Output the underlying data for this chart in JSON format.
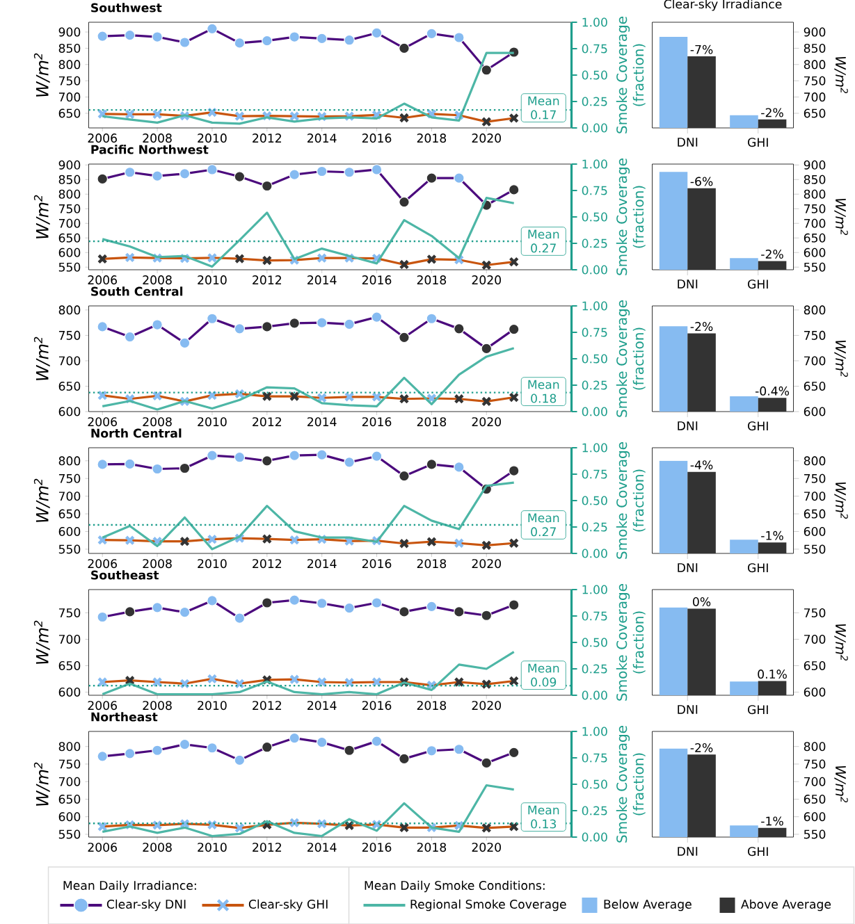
{
  "chart_data": [
    {
      "type": "line",
      "title": "Southwest",
      "ylabel": "W/m$^{2}$",
      "y2label": "Smoke Coverage (fraction)",
      "x": [
        2006,
        2007,
        2008,
        2009,
        2010,
        2011,
        2012,
        2013,
        2014,
        2015,
        2016,
        2017,
        2018,
        2019,
        2020,
        2021
      ],
      "xlim": [
        2005.5,
        2023.1
      ],
      "xticks": [
        2006,
        2008,
        2010,
        2012,
        2014,
        2016,
        2018,
        2020
      ],
      "ylim": [
        605,
        930
      ],
      "yticks": [
        650,
        700,
        750,
        800,
        850,
        900
      ],
      "y2lim": [
        0,
        1
      ],
      "y2ticks": [
        {
          "value": 0,
          "label": "0.00"
        },
        {
          "value": 0.25,
          "label": "0.25"
        },
        {
          "value": 0.5,
          "label": "0.50"
        },
        {
          "value": 0.75,
          "label": "0.75"
        },
        {
          "value": 1,
          "label": "1.00"
        }
      ],
      "series": [
        {
          "color": "#4b0a7d",
          "marker": "circle",
          "colors": [
            "#86bbf1",
            "#86bbf1",
            "#86bbf1",
            "#86bbf1",
            "#86bbf1",
            "#86bbf1",
            "#86bbf1",
            "#86bbf1",
            "#86bbf1",
            "#86bbf1",
            "#86bbf1",
            "#333333",
            "#86bbf1",
            "#86bbf1",
            "#333333",
            "#333333"
          ],
          "values": [
            887,
            890,
            885,
            868,
            910,
            866,
            873,
            885,
            880,
            875,
            897,
            850,
            895,
            883,
            783,
            838
          ]
        },
        {
          "color": "#c8550f",
          "marker": "cross",
          "colors": [
            "#86bbf1",
            "#86bbf1",
            "#86bbf1",
            "#86bbf1",
            "#86bbf1",
            "#86bbf1",
            "#86bbf1",
            "#86bbf1",
            "#86bbf1",
            "#86bbf1",
            "#86bbf1",
            "#333333",
            "#86bbf1",
            "#86bbf1",
            "#333333",
            "#333333"
          ],
          "values": [
            648,
            647,
            647,
            642,
            653,
            641,
            642,
            641,
            640,
            641,
            645,
            636,
            648,
            644,
            624,
            635
          ]
        },
        {
          "color": "#4db6a6",
          "axis": "y2",
          "values": [
            0.11,
            0.08,
            0.05,
            0.12,
            0.05,
            0.04,
            0.1,
            0.06,
            0.09,
            0.1,
            0.09,
            0.23,
            0.1,
            0.07,
            0.71,
            0.71
          ]
        }
      ],
      "ref_lines": [
        {
          "axis": "y2",
          "value": 0.17,
          "label": "Mean 0.17",
          "color": "#1e9e8c",
          "line_style": "dotted"
        }
      ]
    },
    {
      "type": "bar",
      "title": "Clear-sky Irradiance",
      "ylabel": "W/m$^{2}$",
      "categories": [
        "DNI",
        "GHI"
      ],
      "ylim": [
        605,
        930
      ],
      "yticks": [
        650,
        700,
        750,
        800,
        850,
        900
      ],
      "series": [
        {
          "color": "#86bbf1",
          "values": [
            885,
            644
          ]
        },
        {
          "color": "#333333",
          "values": [
            825,
            631
          ]
        }
      ],
      "annotations": [
        {
          "text": "-7%",
          "x": "DNI",
          "y": 825
        },
        {
          "text": "-2%",
          "x": "GHI",
          "y": 631
        }
      ]
    },
    {
      "type": "line",
      "title": "Pacific Northwest",
      "ylabel": "W/m$^{2}$",
      "y2label": "Smoke Coverage (fraction)",
      "x": [
        2006,
        2007,
        2008,
        2009,
        2010,
        2011,
        2012,
        2013,
        2014,
        2015,
        2016,
        2017,
        2018,
        2019,
        2020,
        2021
      ],
      "xlim": [
        2005.5,
        2023.1
      ],
      "xticks": [
        2006,
        2008,
        2010,
        2012,
        2014,
        2016,
        2018,
        2020
      ],
      "ylim": [
        541,
        903
      ],
      "yticks": [
        550,
        600,
        650,
        700,
        750,
        800,
        850,
        900
      ],
      "y2lim": [
        0,
        1
      ],
      "y2ticks": [
        {
          "value": 0,
          "label": "0.00"
        },
        {
          "value": 0.25,
          "label": "0.25"
        },
        {
          "value": 0.5,
          "label": "0.50"
        },
        {
          "value": 0.75,
          "label": "0.75"
        },
        {
          "value": 1,
          "label": "1.00"
        }
      ],
      "series": [
        {
          "color": "#4b0a7d",
          "marker": "circle",
          "colors": [
            "#333333",
            "#86bbf1",
            "#86bbf1",
            "#86bbf1",
            "#86bbf1",
            "#333333",
            "#333333",
            "#86bbf1",
            "#86bbf1",
            "#86bbf1",
            "#86bbf1",
            "#333333",
            "#333333",
            "#86bbf1",
            "#333333",
            "#333333"
          ],
          "values": [
            852,
            875,
            862,
            870,
            884,
            860,
            828,
            867,
            878,
            875,
            884,
            773,
            855,
            855,
            762,
            815
          ]
        },
        {
          "color": "#c8550f",
          "marker": "cross",
          "colors": [
            "#333333",
            "#86bbf1",
            "#86bbf1",
            "#86bbf1",
            "#86bbf1",
            "#333333",
            "#333333",
            "#86bbf1",
            "#86bbf1",
            "#86bbf1",
            "#86bbf1",
            "#333333",
            "#333333",
            "#86bbf1",
            "#333333",
            "#333333"
          ],
          "values": [
            578,
            583,
            581,
            580,
            582,
            579,
            573,
            574,
            581,
            581,
            580,
            559,
            577,
            575,
            557,
            568
          ]
        },
        {
          "color": "#4db6a6",
          "axis": "y2",
          "values": [
            0.29,
            0.22,
            0.12,
            0.13,
            0.03,
            0.28,
            0.54,
            0.1,
            0.2,
            0.13,
            0.06,
            0.47,
            0.32,
            0.11,
            0.68,
            0.63
          ]
        }
      ],
      "ref_lines": [
        {
          "axis": "y2",
          "value": 0.27,
          "label": "Mean 0.27",
          "color": "#1e9e8c",
          "line_style": "dotted"
        }
      ]
    },
    {
      "type": "bar",
      "ylabel": "W/m$^{2}$",
      "categories": [
        "DNI",
        "GHI"
      ],
      "ylim": [
        541,
        903
      ],
      "yticks": [
        550,
        600,
        650,
        700,
        750,
        800,
        850,
        900
      ],
      "series": [
        {
          "color": "#86bbf1",
          "values": [
            876,
            581
          ]
        },
        {
          "color": "#333333",
          "values": [
            820,
            571
          ]
        }
      ],
      "annotations": [
        {
          "text": "-6%",
          "x": "DNI",
          "y": 820
        },
        {
          "text": "-2%",
          "x": "GHI",
          "y": 571
        }
      ]
    },
    {
      "type": "line",
      "title": "South Central",
      "ylabel": "W/m$^{2}$",
      "y2label": "Smoke Coverage (fraction)",
      "x": [
        2006,
        2007,
        2008,
        2009,
        2010,
        2011,
        2012,
        2013,
        2014,
        2015,
        2016,
        2017,
        2018,
        2019,
        2020,
        2021
      ],
      "xlim": [
        2005.5,
        2023.1
      ],
      "xticks": [
        2006,
        2008,
        2010,
        2012,
        2014,
        2016,
        2018,
        2020
      ],
      "ylim": [
        600,
        808
      ],
      "yticks": [
        600,
        650,
        700,
        750,
        800
      ],
      "y2lim": [
        0,
        1
      ],
      "y2ticks": [
        {
          "value": 0,
          "label": "0.00"
        },
        {
          "value": 0.25,
          "label": "0.25"
        },
        {
          "value": 0.5,
          "label": "0.50"
        },
        {
          "value": 0.75,
          "label": "0.75"
        },
        {
          "value": 1,
          "label": "1.00"
        }
      ],
      "series": [
        {
          "color": "#4b0a7d",
          "marker": "circle",
          "colors": [
            "#86bbf1",
            "#86bbf1",
            "#86bbf1",
            "#86bbf1",
            "#86bbf1",
            "#86bbf1",
            "#333333",
            "#333333",
            "#86bbf1",
            "#86bbf1",
            "#86bbf1",
            "#333333",
            "#86bbf1",
            "#333333",
            "#333333",
            "#333333"
          ],
          "values": [
            767,
            747,
            771,
            735,
            783,
            763,
            767,
            774,
            775,
            772,
            786,
            746,
            783,
            763,
            724,
            762
          ]
        },
        {
          "color": "#c8550f",
          "marker": "cross",
          "colors": [
            "#86bbf1",
            "#86bbf1",
            "#86bbf1",
            "#86bbf1",
            "#86bbf1",
            "#86bbf1",
            "#333333",
            "#333333",
            "#86bbf1",
            "#86bbf1",
            "#86bbf1",
            "#333333",
            "#86bbf1",
            "#333333",
            "#333333",
            "#333333"
          ],
          "values": [
            632,
            625,
            631,
            620,
            632,
            635,
            630,
            630,
            627,
            629,
            629,
            625,
            626,
            625,
            620,
            628
          ]
        },
        {
          "color": "#4db6a6",
          "axis": "y2",
          "values": [
            0.05,
            0.1,
            0.02,
            0.1,
            0.03,
            0.11,
            0.23,
            0.22,
            0.08,
            0.06,
            0.05,
            0.32,
            0.07,
            0.35,
            0.52,
            0.6
          ]
        }
      ],
      "ref_lines": [
        {
          "axis": "y2",
          "value": 0.18,
          "label": "Mean 0.18",
          "color": "#1e9e8c",
          "line_style": "dotted"
        }
      ]
    },
    {
      "type": "bar",
      "ylabel": "W/m$^{2}$",
      "categories": [
        "DNI",
        "GHI"
      ],
      "ylim": [
        600,
        808
      ],
      "yticks": [
        600,
        650,
        700,
        750,
        800
      ],
      "series": [
        {
          "color": "#86bbf1",
          "values": [
            768,
            630
          ]
        },
        {
          "color": "#333333",
          "values": [
            754,
            627
          ]
        }
      ],
      "annotations": [
        {
          "text": "-2%",
          "x": "DNI",
          "y": 754
        },
        {
          "text": "-0.4%",
          "x": "GHI",
          "y": 627
        }
      ]
    },
    {
      "type": "line",
      "title": "North Central",
      "ylabel": "W/m$^{2}$",
      "y2label": "Smoke Coverage (fraction)",
      "x": [
        2006,
        2007,
        2008,
        2009,
        2010,
        2011,
        2012,
        2013,
        2014,
        2015,
        2016,
        2017,
        2018,
        2019,
        2020,
        2021
      ],
      "xlim": [
        2005.5,
        2023.1
      ],
      "xticks": [
        2006,
        2008,
        2010,
        2012,
        2014,
        2016,
        2018,
        2020
      ],
      "ylim": [
        538,
        837
      ],
      "yticks": [
        550,
        600,
        650,
        700,
        750,
        800
      ],
      "y2lim": [
        0,
        1
      ],
      "y2ticks": [
        {
          "value": 0,
          "label": "0.00"
        },
        {
          "value": 0.25,
          "label": "0.25"
        },
        {
          "value": 0.5,
          "label": "0.50"
        },
        {
          "value": 0.75,
          "label": "0.75"
        },
        {
          "value": 1,
          "label": "1.00"
        }
      ],
      "series": [
        {
          "color": "#4b0a7d",
          "marker": "circle",
          "colors": [
            "#86bbf1",
            "#86bbf1",
            "#86bbf1",
            "#333333",
            "#86bbf1",
            "#86bbf1",
            "#333333",
            "#86bbf1",
            "#86bbf1",
            "#86bbf1",
            "#86bbf1",
            "#333333",
            "#333333",
            "#86bbf1",
            "#333333",
            "#333333"
          ],
          "values": [
            790,
            791,
            777,
            779,
            815,
            810,
            800,
            815,
            817,
            796,
            813,
            757,
            790,
            782,
            720,
            772
          ]
        },
        {
          "color": "#c8550f",
          "marker": "cross",
          "colors": [
            "#86bbf1",
            "#86bbf1",
            "#86bbf1",
            "#333333",
            "#86bbf1",
            "#86bbf1",
            "#333333",
            "#86bbf1",
            "#86bbf1",
            "#86bbf1",
            "#86bbf1",
            "#333333",
            "#333333",
            "#86bbf1",
            "#333333",
            "#333333"
          ],
          "values": [
            576,
            575,
            572,
            572,
            578,
            581,
            579,
            576,
            578,
            573,
            574,
            566,
            571,
            567,
            561,
            567
          ]
        },
        {
          "color": "#4db6a6",
          "axis": "y2",
          "values": [
            0.15,
            0.26,
            0.07,
            0.34,
            0.04,
            0.16,
            0.45,
            0.21,
            0.15,
            0.15,
            0.11,
            0.45,
            0.31,
            0.23,
            0.64,
            0.67
          ]
        }
      ],
      "ref_lines": [
        {
          "axis": "y2",
          "value": 0.27,
          "label": "Mean 0.27",
          "color": "#1e9e8c",
          "line_style": "dotted"
        }
      ]
    },
    {
      "type": "bar",
      "ylabel": "W/m$^{2}$",
      "categories": [
        "DNI",
        "GHI"
      ],
      "ylim": [
        538,
        837
      ],
      "yticks": [
        550,
        600,
        650,
        700,
        750,
        800
      ],
      "series": [
        {
          "color": "#86bbf1",
          "values": [
            800,
            577
          ]
        },
        {
          "color": "#333333",
          "values": [
            769,
            569
          ]
        }
      ],
      "annotations": [
        {
          "text": "-4%",
          "x": "DNI",
          "y": 769
        },
        {
          "text": "-1%",
          "x": "GHI",
          "y": 569
        }
      ]
    },
    {
      "type": "line",
      "title": "Southeast",
      "ylabel": "W/m$^{2}$",
      "y2label": "Smoke Coverage (fraction)",
      "x": [
        2006,
        2007,
        2008,
        2009,
        2010,
        2011,
        2012,
        2013,
        2014,
        2015,
        2016,
        2017,
        2018,
        2019,
        2020,
        2021
      ],
      "xlim": [
        2005.5,
        2023.1
      ],
      "xticks": [
        2006,
        2008,
        2010,
        2012,
        2014,
        2016,
        2018,
        2020
      ],
      "ylim": [
        594,
        794
      ],
      "yticks": [
        600,
        650,
        700,
        750
      ],
      "y2lim": [
        0,
        1
      ],
      "y2ticks": [
        {
          "value": 0,
          "label": "0.00"
        },
        {
          "value": 0.25,
          "label": "0.25"
        },
        {
          "value": 0.5,
          "label": "0.50"
        },
        {
          "value": 0.75,
          "label": "0.75"
        },
        {
          "value": 1,
          "label": "1.00"
        }
      ],
      "series": [
        {
          "color": "#4b0a7d",
          "marker": "circle",
          "colors": [
            "#86bbf1",
            "#333333",
            "#86bbf1",
            "#86bbf1",
            "#86bbf1",
            "#86bbf1",
            "#333333",
            "#86bbf1",
            "#86bbf1",
            "#86bbf1",
            "#86bbf1",
            "#333333",
            "#86bbf1",
            "#333333",
            "#333333",
            "#333333"
          ],
          "values": [
            742,
            752,
            760,
            751,
            773,
            740,
            769,
            774,
            768,
            759,
            769,
            752,
            762,
            752,
            745,
            765
          ]
        },
        {
          "color": "#c8550f",
          "marker": "cross",
          "colors": [
            "#86bbf1",
            "#333333",
            "#86bbf1",
            "#86bbf1",
            "#86bbf1",
            "#86bbf1",
            "#333333",
            "#86bbf1",
            "#86bbf1",
            "#86bbf1",
            "#86bbf1",
            "#333333",
            "#86bbf1",
            "#333333",
            "#333333",
            "#333333"
          ],
          "values": [
            619,
            622,
            619,
            616,
            625,
            616,
            623,
            624,
            619,
            618,
            619,
            619,
            613,
            619,
            615,
            621
          ]
        },
        {
          "color": "#4db6a6",
          "axis": "y2",
          "values": [
            0.01,
            0.11,
            0.01,
            0.01,
            0.01,
            0.03,
            0.13,
            0.03,
            0.01,
            0.03,
            0.01,
            0.12,
            0.05,
            0.29,
            0.25,
            0.41
          ]
        }
      ],
      "ref_lines": [
        {
          "axis": "y2",
          "value": 0.09,
          "label": "Mean 0.09",
          "color": "#1e9e8c",
          "line_style": "dotted"
        }
      ]
    },
    {
      "type": "bar",
      "ylabel": "W/m$^{2}$",
      "categories": [
        "DNI",
        "GHI"
      ],
      "ylim": [
        594,
        794
      ],
      "yticks": [
        600,
        650,
        700,
        750
      ],
      "series": [
        {
          "color": "#86bbf1",
          "values": [
            760,
            620
          ]
        },
        {
          "color": "#333333",
          "values": [
            758,
            621
          ]
        }
      ],
      "annotations": [
        {
          "text": "0%",
          "x": "DNI",
          "y": 758
        },
        {
          "text": "0.1%",
          "x": "GHI",
          "y": 621
        }
      ]
    },
    {
      "type": "line",
      "title": "Northeast",
      "ylabel": "W/m$^{2}$",
      "y2label": "Smoke Coverage (fraction)",
      "legend": "bottom",
      "legend_title": "Mean Daily Irradiance:",
      "x": [
        2006,
        2007,
        2008,
        2009,
        2010,
        2011,
        2012,
        2013,
        2014,
        2015,
        2016,
        2017,
        2018,
        2019,
        2020,
        2021
      ],
      "xlim": [
        2005.5,
        2023.1
      ],
      "xticks": [
        2006,
        2008,
        2010,
        2012,
        2014,
        2016,
        2018,
        2020
      ],
      "ylim": [
        542,
        843
      ],
      "yticks": [
        550,
        600,
        650,
        700,
        750,
        800
      ],
      "y2lim": [
        0,
        1
      ],
      "y2ticks": [
        {
          "value": 0,
          "label": "0.00"
        },
        {
          "value": 0.25,
          "label": "0.25"
        },
        {
          "value": 0.5,
          "label": "0.50"
        },
        {
          "value": 0.75,
          "label": "0.75"
        },
        {
          "value": 1,
          "label": "1.00"
        }
      ],
      "series": [
        {
          "name": "Clear-sky DNI",
          "color": "#4b0a7d",
          "marker": "circle",
          "colors": [
            "#86bbf1",
            "#86bbf1",
            "#86bbf1",
            "#86bbf1",
            "#86bbf1",
            "#86bbf1",
            "#333333",
            "#86bbf1",
            "#86bbf1",
            "#333333",
            "#86bbf1",
            "#333333",
            "#86bbf1",
            "#86bbf1",
            "#333333",
            "#333333"
          ],
          "values": [
            772,
            780,
            789,
            806,
            796,
            761,
            798,
            824,
            812,
            789,
            815,
            765,
            788,
            792,
            753,
            783
          ]
        },
        {
          "name": "Clear-sky GHI",
          "color": "#c8550f",
          "marker": "cross",
          "colors": [
            "#86bbf1",
            "#86bbf1",
            "#86bbf1",
            "#86bbf1",
            "#86bbf1",
            "#86bbf1",
            "#333333",
            "#86bbf1",
            "#86bbf1",
            "#333333",
            "#86bbf1",
            "#333333",
            "#86bbf1",
            "#86bbf1",
            "#333333",
            "#333333"
          ],
          "values": [
            572,
            577,
            576,
            580,
            577,
            568,
            577,
            583,
            580,
            575,
            578,
            569,
            569,
            575,
            568,
            572
          ]
        },
        {
          "name": "Regional Smoke Coverage",
          "color": "#4db6a6",
          "axis": "y2",
          "values": [
            0.05,
            0.1,
            0.04,
            0.09,
            0.01,
            0.03,
            0.15,
            0.04,
            0.01,
            0.17,
            0.06,
            0.32,
            0.09,
            0.05,
            0.49,
            0.45
          ]
        }
      ],
      "ref_lines": [
        {
          "axis": "y2",
          "value": 0.13,
          "label": "Mean 0.13",
          "color": "#1e9e8c",
          "line_style": "dotted"
        }
      ]
    },
    {
      "type": "bar",
      "ylabel": "W/m$^{2}$",
      "legend": "bottom",
      "legend_title": "Mean Daily Smoke Conditions:",
      "categories": [
        "DNI",
        "GHI"
      ],
      "ylim": [
        542,
        843
      ],
      "yticks": [
        550,
        600,
        650,
        700,
        750,
        800
      ],
      "series": [
        {
          "name": "Below Average",
          "color": "#86bbf1",
          "values": [
            794,
            575
          ]
        },
        {
          "name": "Above Average",
          "color": "#333333",
          "values": [
            777,
            568
          ]
        }
      ],
      "annotations": [
        {
          "text": "-2%",
          "x": "DNI",
          "y": 777
        },
        {
          "text": "-1%",
          "x": "GHI",
          "y": 568
        }
      ]
    }
  ]
}
